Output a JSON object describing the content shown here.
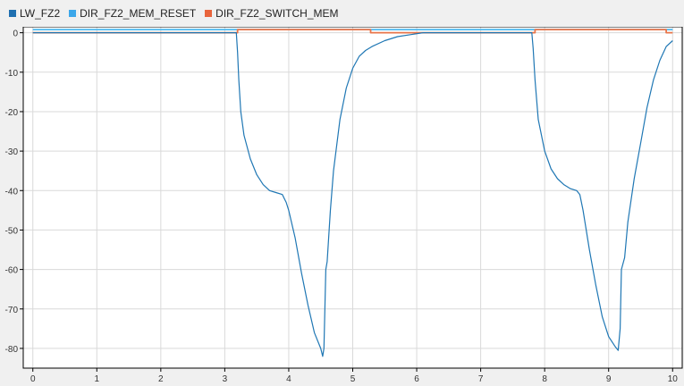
{
  "chart_data": {
    "type": "line",
    "title": "",
    "xlabel": "",
    "ylabel": "",
    "xlim": [
      -0.15,
      10.15
    ],
    "ylim": [
      -85,
      1.5
    ],
    "x_ticks": [
      0,
      1,
      2,
      3,
      4,
      5,
      6,
      7,
      8,
      9,
      10
    ],
    "y_ticks": [
      0,
      -10,
      -20,
      -30,
      -40,
      -50,
      -60,
      -70,
      -80
    ],
    "grid": true,
    "legend_position": "top-left",
    "series": [
      {
        "name": "LW_FZ2",
        "color": "#1f77b4",
        "x": [
          0,
          3.18,
          3.2,
          3.22,
          3.25,
          3.3,
          3.4,
          3.5,
          3.6,
          3.7,
          3.8,
          3.9,
          3.93,
          3.96,
          4.0,
          4.1,
          4.2,
          4.3,
          4.4,
          4.5,
          4.53,
          4.55,
          4.58,
          4.6,
          4.65,
          4.7,
          4.8,
          4.9,
          5.0,
          5.1,
          5.2,
          5.3,
          5.5,
          5.7,
          5.9,
          6.1,
          6.5,
          7.0,
          7.5,
          7.8,
          7.82,
          7.85,
          7.9,
          8.0,
          8.1,
          8.2,
          8.3,
          8.4,
          8.5,
          8.55,
          8.6,
          8.7,
          8.8,
          8.9,
          9.0,
          9.1,
          9.15,
          9.18,
          9.2,
          9.25,
          9.3,
          9.4,
          9.5,
          9.6,
          9.7,
          9.8,
          9.9,
          10.0
        ],
        "y": [
          0,
          0,
          -5,
          -12,
          -20,
          -26,
          -32,
          -36,
          -38.5,
          -40,
          -40.5,
          -41,
          -42,
          -43,
          -45,
          -52,
          -61,
          -69,
          -76,
          -80,
          -82,
          -80,
          -60,
          -58,
          -45,
          -35,
          -22,
          -14,
          -9,
          -6,
          -4.5,
          -3.5,
          -2,
          -1,
          -0.5,
          0,
          0,
          0,
          0,
          0,
          -4,
          -12,
          -22,
          -30,
          -34.5,
          -37,
          -38.5,
          -39.5,
          -40,
          -41,
          -45,
          -55,
          -64,
          -72,
          -77,
          -79.5,
          -80.5,
          -75,
          -60,
          -57,
          -48,
          -37,
          -28,
          -19,
          -12,
          -7,
          -3.5,
          -2
        ]
      },
      {
        "name": "DIR_FZ2_MEM_RESET",
        "color": "#4db8f0",
        "x": [
          0,
          10
        ],
        "y": [
          0.8,
          0.8
        ]
      },
      {
        "name": "DIR_FZ2_SWITCH_MEM",
        "color": "#e8754a",
        "x": [
          0,
          3.2,
          3.2,
          5.28,
          5.28,
          7.85,
          7.85,
          9.9,
          9.9,
          10
        ],
        "y": [
          0,
          0,
          0.8,
          0.8,
          0,
          0,
          0.8,
          0.8,
          0,
          0
        ]
      }
    ]
  },
  "legend": {
    "items": [
      {
        "label": "LW_FZ2",
        "color": "#1f6fb0"
      },
      {
        "label": "DIR_FZ2_MEM_RESET",
        "color": "#3ca7ea"
      },
      {
        "label": "DIR_FZ2_SWITCH_MEM",
        "color": "#e8643c"
      }
    ]
  },
  "plot_bg": "#ffffff",
  "grid_color": "#d9d9d9",
  "axis_color": "#000000"
}
